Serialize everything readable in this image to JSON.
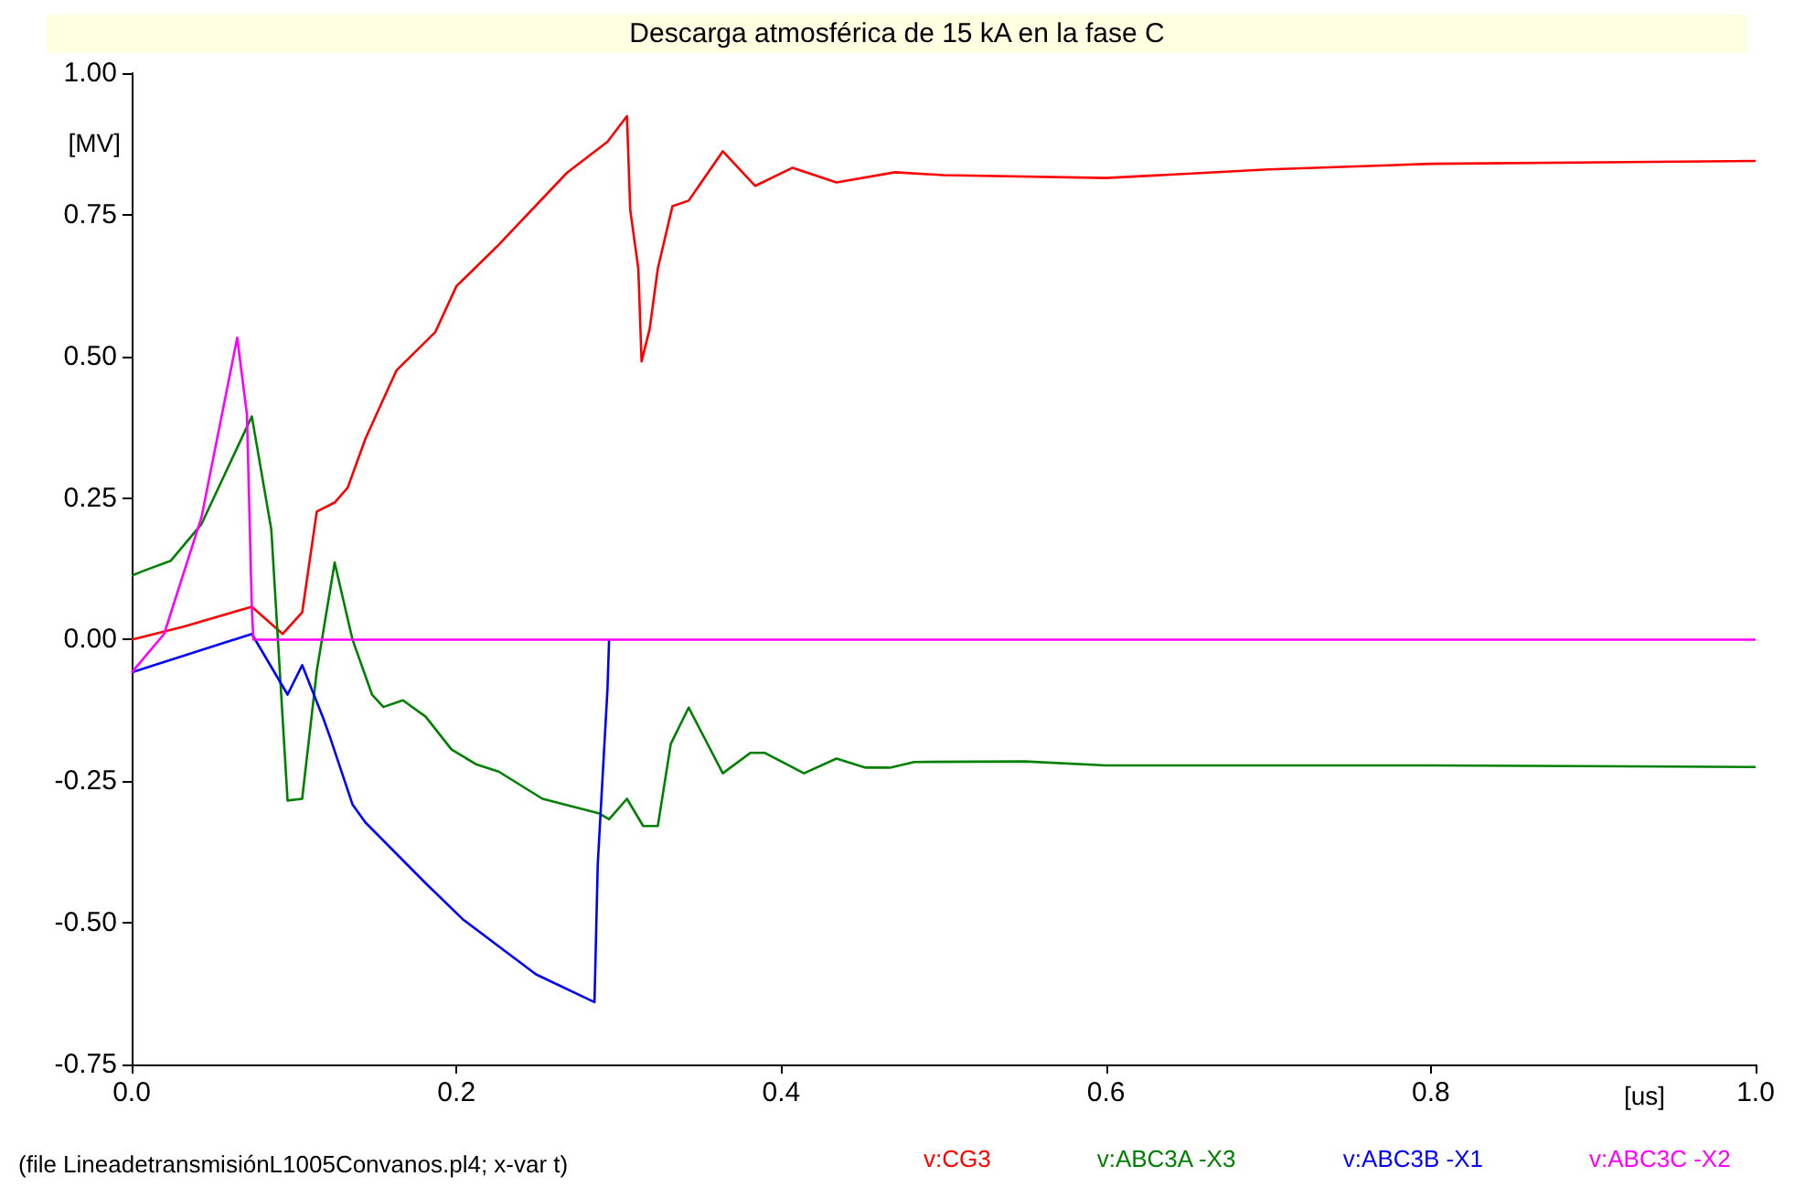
{
  "chart_data": {
    "type": "line",
    "title": "Descarga atmosférica de 15 kA en la fase C",
    "xlabel": "[us]",
    "ylabel": "[MV]",
    "annotations": [
      "(file LineadetransmisiónL1005Convanos.pl4; x-var t)"
    ],
    "xlim": [
      0,
      1
    ],
    "ylim": [
      -0.75,
      1
    ],
    "xticks": [
      {
        "value": 0,
        "label": "0.0"
      },
      {
        "value": 0.2,
        "label": "0.2"
      },
      {
        "value": 0.4,
        "label": "0.4"
      },
      {
        "value": 0.6,
        "label": "0.6"
      },
      {
        "value": 0.8,
        "label": "0.8"
      },
      {
        "value": 1,
        "label": "1.0"
      }
    ],
    "yticks": [
      {
        "value": -0.75,
        "label": "-0.75"
      },
      {
        "value": -0.5,
        "label": "-0.50"
      },
      {
        "value": -0.25,
        "label": "-0.25"
      },
      {
        "value": 0,
        "label": "0.00"
      },
      {
        "value": 0.25,
        "label": "0.25"
      },
      {
        "value": 0.5,
        "label": "0.50"
      },
      {
        "value": 0.75,
        "label": "0.75"
      },
      {
        "value": 1,
        "label": "1.00"
      }
    ],
    "grid": false,
    "legend": "bottom",
    "marker": "none",
    "line_style": "solid",
    "series": [
      {
        "name": "v:CG3",
        "color": "#ff0000",
        "x": [
          0,
          0.032,
          0.074,
          0.093,
          0.105,
          0.114,
          0.125,
          0.133,
          0.144,
          0.163,
          0.187,
          0.2,
          0.225,
          0.268,
          0.293,
          0.305,
          0.307,
          0.312,
          0.314,
          0.319,
          0.324,
          0.333,
          0.343,
          0.364,
          0.384,
          0.407,
          0.434,
          0.47,
          0.5,
          0.6,
          0.7,
          0.8,
          1
        ],
        "values": [
          0,
          0.023,
          0.058,
          0.01,
          0.048,
          0.226,
          0.242,
          0.268,
          0.355,
          0.475,
          0.543,
          0.624,
          0.694,
          0.824,
          0.879,
          0.924,
          0.759,
          0.655,
          0.491,
          0.549,
          0.655,
          0.765,
          0.775,
          0.862,
          0.801,
          0.833,
          0.807,
          0.825,
          0.82,
          0.815,
          0.83,
          0.84,
          0.845
        ]
      },
      {
        "name": "v:ABC3A -X3",
        "color": "#008000",
        "x": [
          0,
          0.006,
          0.024,
          0.043,
          0.074,
          0.086,
          0.096,
          0.105,
          0.114,
          0.125,
          0.136,
          0.148,
          0.155,
          0.167,
          0.181,
          0.197,
          0.212,
          0.226,
          0.253,
          0.288,
          0.294,
          0.305,
          0.315,
          0.324,
          0.332,
          0.343,
          0.364,
          0.381,
          0.39,
          0.414,
          0.434,
          0.452,
          0.467,
          0.482,
          0.55,
          0.6,
          0.8,
          1
        ],
        "values": [
          0.113,
          0.12,
          0.139,
          0.204,
          0.394,
          0.194,
          -0.284,
          -0.281,
          -0.055,
          0.136,
          0,
          -0.097,
          -0.119,
          -0.107,
          -0.136,
          -0.194,
          -0.22,
          -0.233,
          -0.281,
          -0.307,
          -0.317,
          -0.281,
          -0.329,
          -0.329,
          -0.184,
          -0.12,
          -0.236,
          -0.2,
          -0.2,
          -0.236,
          -0.21,
          -0.226,
          -0.226,
          -0.216,
          -0.215,
          -0.222,
          -0.222,
          -0.225
        ]
      },
      {
        "name": "v:ABC3B -X1",
        "color": "#0000ff",
        "x": [
          0,
          0.074,
          0.096,
          0.105,
          0.118,
          0.122,
          0.136,
          0.144,
          0.181,
          0.204,
          0.249,
          0.285,
          0.287,
          0.293,
          0.294
        ],
        "values": [
          -0.058,
          0.01,
          -0.097,
          -0.045,
          -0.139,
          -0.171,
          -0.291,
          -0.323,
          -0.43,
          -0.494,
          -0.591,
          -0.64,
          -0.397,
          -0.087,
          0
        ]
      },
      {
        "name": "v:ABC3C -X2",
        "color": "#ff00ff",
        "x": [
          0,
          0.02,
          0.043,
          0.065,
          0.071,
          0.074,
          0.075,
          1
        ],
        "values": [
          -0.058,
          0.01,
          0.216,
          0.533,
          0.397,
          0.055,
          0,
          0
        ]
      }
    ]
  }
}
